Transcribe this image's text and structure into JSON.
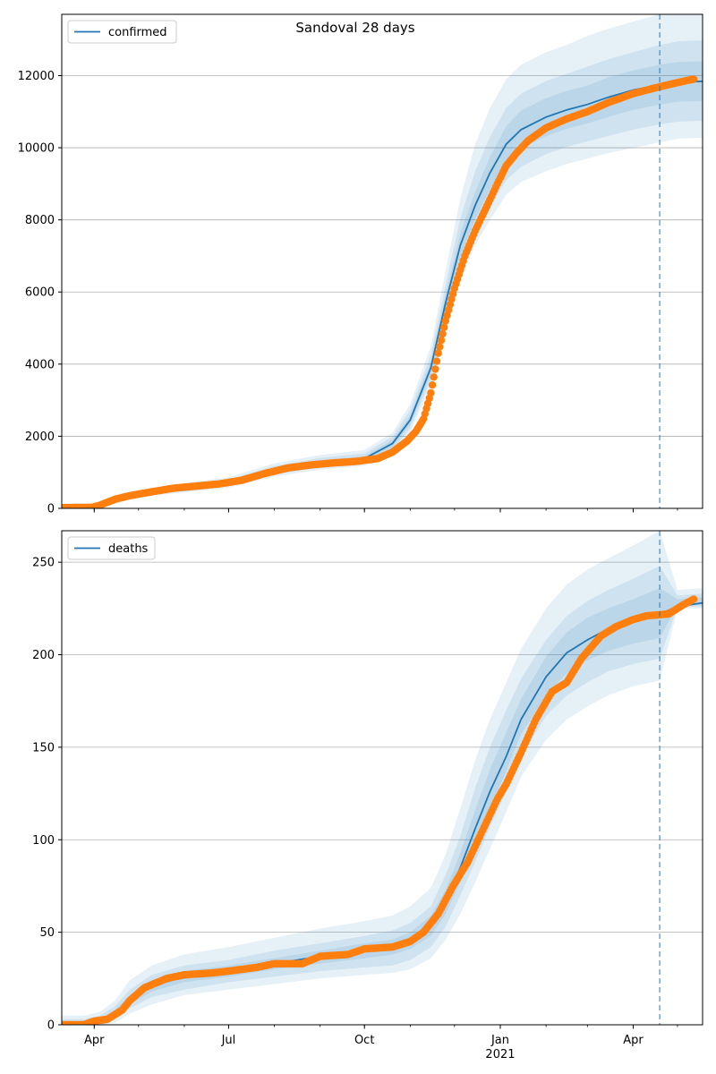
{
  "chart_data": [
    {
      "type": "line",
      "title": "Sandoval 28 days",
      "legend": {
        "label": "confirmed",
        "placement": "top-left"
      },
      "x_axis": {
        "range": [
          "2020-03-10",
          "2021-05-18"
        ],
        "major_ticks": [
          {
            "date": "2020-04-01",
            "label": "Apr"
          },
          {
            "date": "2020-07-01",
            "label": "Jul"
          },
          {
            "date": "2020-10-01",
            "label": "Oct"
          },
          {
            "date": "2021-01-01",
            "label": "Jan",
            "sublabel": "2021"
          },
          {
            "date": "2021-04-01",
            "label": "Apr"
          }
        ],
        "show_labels": false
      },
      "y_axis": {
        "range": [
          0,
          13700
        ],
        "ticks": [
          0,
          2000,
          4000,
          6000,
          8000,
          10000,
          12000
        ],
        "grid": true
      },
      "forecast_start": "2021-04-19",
      "colors": {
        "line": "#1f77b4",
        "observed": "#ff7f0e",
        "band": "#1f77b4",
        "forecast_line": "#1f77b4"
      },
      "model_series": {
        "name": "confirmed",
        "x": [
          "2020-03-10",
          "2020-03-25",
          "2020-04-05",
          "2020-04-20",
          "2020-05-10",
          "2020-06-01",
          "2020-07-01",
          "2020-08-01",
          "2020-09-01",
          "2020-10-01",
          "2020-10-20",
          "2020-11-01",
          "2020-11-15",
          "2020-11-25",
          "2020-12-05",
          "2020-12-15",
          "2020-12-25",
          "2021-01-05",
          "2021-01-15",
          "2021-02-01",
          "2021-02-15",
          "2021-03-01",
          "2021-03-15",
          "2021-04-01",
          "2021-04-19",
          "2021-05-01",
          "2021-05-18"
        ],
        "y": [
          10,
          20,
          120,
          310,
          450,
          560,
          700,
          1050,
          1260,
          1380,
          1800,
          2450,
          3900,
          5700,
          7300,
          8400,
          9300,
          10100,
          10500,
          10850,
          11050,
          11200,
          11400,
          11600,
          11750,
          11820,
          11840
        ],
        "bands": [
          {
            "lower": [
              0,
              0,
              60,
              210,
              350,
              440,
              570,
              880,
              1070,
              1180,
              1530,
              2120,
              3400,
              5000,
              6350,
              7300,
              8000,
              8700,
              9050,
              9350,
              9550,
              9700,
              9850,
              10000,
              10150,
              10250,
              10280
            ],
            "upper": [
              40,
              70,
              190,
              420,
              560,
              700,
              860,
              1250,
              1480,
              1620,
              2100,
              2900,
              4500,
              6600,
              8600,
              10100,
              11100,
              11900,
              12300,
              12650,
              12850,
              13100,
              13300,
              13500,
              13700,
              13800,
              13850
            ]
          },
          {
            "lower": [
              5,
              5,
              80,
              240,
              385,
              480,
              615,
              935,
              1135,
              1245,
              1615,
              2225,
              3575,
              5225,
              6650,
              7650,
              8400,
              9100,
              9475,
              9825,
              10025,
              10175,
              10325,
              10500,
              10650,
              10725,
              10750
            ],
            "upper": [
              30,
              50,
              165,
              385,
              520,
              650,
              800,
              1175,
              1400,
              1525,
              1985,
              2725,
              4250,
              6200,
              8050,
              9350,
              10300,
              11100,
              11500,
              11850,
              12050,
              12250,
              12450,
              12650,
              12850,
              12950,
              12980
            ]
          },
          {
            "lower": [
              8,
              12,
              100,
              280,
              420,
              520,
              660,
              995,
              1195,
              1315,
              1705,
              2335,
              3725,
              5475,
              6975,
              8025,
              8850,
              9600,
              9975,
              10325,
              10525,
              10675,
              10850,
              11050,
              11200,
              11275,
              11300
            ],
            "upper": [
              15,
              30,
              140,
              340,
              480,
              600,
              740,
              1105,
              1325,
              1445,
              1895,
              2565,
              4075,
              5925,
              7625,
              8775,
              9750,
              10600,
              11025,
              11375,
              11575,
              11725,
              11950,
              12150,
              12300,
              12375,
              12400
            ]
          }
        ]
      },
      "observed_series": {
        "name": "confirmed (observed)",
        "x": [
          "2020-03-10",
          "2020-03-20",
          "2020-03-31",
          "2020-04-05",
          "2020-04-15",
          "2020-04-25",
          "2020-05-10",
          "2020-05-25",
          "2020-06-10",
          "2020-06-25",
          "2020-07-10",
          "2020-07-25",
          "2020-08-10",
          "2020-08-25",
          "2020-09-10",
          "2020-09-25",
          "2020-10-10",
          "2020-10-20",
          "2020-10-30",
          "2020-11-05",
          "2020-11-10",
          "2020-11-15",
          "2020-11-20",
          "2020-11-25",
          "2020-12-01",
          "2020-12-08",
          "2020-12-15",
          "2020-12-22",
          "2020-12-30",
          "2021-01-05",
          "2021-01-12",
          "2021-01-20",
          "2021-02-01",
          "2021-02-15",
          "2021-03-01",
          "2021-03-15",
          "2021-04-01",
          "2021-04-15",
          "2021-04-25",
          "2021-05-08",
          "2021-05-12"
        ],
        "y": [
          20,
          25,
          30,
          90,
          250,
          350,
          460,
          560,
          620,
          680,
          780,
          960,
          1120,
          1200,
          1260,
          1300,
          1380,
          1560,
          1870,
          2140,
          2480,
          3200,
          4300,
          5200,
          6100,
          7000,
          7700,
          8300,
          9000,
          9500,
          9850,
          10200,
          10550,
          10800,
          11000,
          11250,
          11500,
          11650,
          11750,
          11870,
          11900
        ]
      }
    },
    {
      "type": "line",
      "legend": {
        "label": "deaths",
        "placement": "top-left"
      },
      "x_axis": {
        "range": [
          "2020-03-10",
          "2021-05-18"
        ],
        "major_ticks": [
          {
            "date": "2020-04-01",
            "label": "Apr"
          },
          {
            "date": "2020-07-01",
            "label": "Jul"
          },
          {
            "date": "2020-10-01",
            "label": "Oct"
          },
          {
            "date": "2021-01-01",
            "label": "Jan",
            "sublabel": "2021"
          },
          {
            "date": "2021-04-01",
            "label": "Apr"
          }
        ],
        "show_labels": true
      },
      "y_axis": {
        "range": [
          0,
          267
        ],
        "ticks": [
          0,
          50,
          100,
          150,
          200,
          250
        ],
        "grid": true
      },
      "forecast_start": "2021-04-19",
      "colors": {
        "line": "#1f77b4",
        "observed": "#ff7f0e",
        "band": "#1f77b4",
        "forecast_line": "#1f77b4"
      },
      "model_series": {
        "name": "deaths",
        "x": [
          "2020-03-10",
          "2020-03-25",
          "2020-04-05",
          "2020-04-15",
          "2020-04-25",
          "2020-05-10",
          "2020-06-01",
          "2020-07-01",
          "2020-08-01",
          "2020-09-01",
          "2020-10-01",
          "2020-10-20",
          "2020-11-01",
          "2020-11-15",
          "2020-11-25",
          "2020-12-05",
          "2020-12-15",
          "2020-12-25",
          "2021-01-05",
          "2021-01-15",
          "2021-02-01",
          "2021-02-15",
          "2021-03-01",
          "2021-03-15",
          "2021-04-01",
          "2021-04-19",
          "2021-05-01",
          "2021-05-18"
        ],
        "y": [
          0,
          0,
          2,
          6,
          14,
          21,
          26,
          29,
          33,
          37,
          40,
          42,
          46,
          54,
          67,
          85,
          106,
          126,
          145,
          165,
          188,
          201,
          208,
          214,
          219,
          222,
          226,
          228
        ],
        "bands": [
          {
            "lower": [
              0,
              0,
              0,
              1,
              6,
              11,
              16,
              19,
              22,
              25,
              27,
              28,
              30,
              36,
              46,
              60,
              77,
              95,
              115,
              134,
              154,
              165,
              172,
              178,
              183,
              186,
              225,
              225
            ],
            "upper": [
              5,
              5,
              7,
              13,
              24,
              32,
              38,
              42,
              47,
              52,
              56,
              59,
              64,
              74,
              92,
              117,
              143,
              165,
              185,
              203,
              225,
              238,
              246,
              252,
              259,
              267,
              235,
              236
            ]
          },
          {
            "lower": [
              0,
              0,
              1,
              3,
              9,
              15,
              19,
              23,
              26,
              29,
              31,
              32,
              35,
              42,
              53,
              70,
              88,
              107,
              126,
              145,
              167,
              178,
              185,
              191,
              195,
              198,
              226,
              226
            ],
            "upper": [
              3,
              3,
              5,
              10,
              19,
              27,
              32,
              35,
              40,
              44,
              48,
              51,
              55,
              64,
              81,
              102,
              128,
              150,
              170,
              187,
              208,
              221,
              229,
              235,
              241,
              248,
              232,
              233
            ]
          },
          {
            "lower": [
              0,
              0,
              1,
              5,
              11,
              18,
              23,
              26,
              30,
              33,
              36,
              38,
              41,
              48,
              60,
              77,
              97,
              117,
              137,
              157,
              178,
              190,
              197,
              202,
              206,
              209,
              227,
              227
            ],
            "upper": [
              1,
              2,
              3,
              8,
              16,
              24,
              29,
              32,
              36,
              40,
              44,
              46,
              50,
              59,
              73,
              93,
              116,
              138,
              158,
              176,
              199,
              212,
              220,
              225,
              230,
              236,
              230,
              231
            ]
          }
        ]
      },
      "observed_series": {
        "name": "deaths (observed)",
        "x": [
          "2020-03-10",
          "2020-03-25",
          "2020-04-01",
          "2020-04-10",
          "2020-04-20",
          "2020-04-25",
          "2020-05-05",
          "2020-05-20",
          "2020-06-01",
          "2020-06-20",
          "2020-07-01",
          "2020-07-20",
          "2020-08-01",
          "2020-08-20",
          "2020-09-01",
          "2020-09-20",
          "2020-10-01",
          "2020-10-20",
          "2020-11-01",
          "2020-11-10",
          "2020-11-20",
          "2020-11-30",
          "2020-12-10",
          "2020-12-20",
          "2020-12-30",
          "2021-01-05",
          "2021-01-15",
          "2021-01-25",
          "2021-02-05",
          "2021-02-15",
          "2021-02-25",
          "2021-03-10",
          "2021-03-20",
          "2021-04-01",
          "2021-04-10",
          "2021-04-25",
          "2021-05-05",
          "2021-05-12"
        ],
        "y": [
          0,
          0,
          2,
          3,
          8,
          13,
          20,
          25,
          27,
          28,
          29,
          31,
          33,
          33,
          37,
          38,
          41,
          42,
          45,
          50,
          60,
          75,
          88,
          105,
          122,
          130,
          147,
          165,
          180,
          185,
          198,
          210,
          215,
          219,
          221,
          222,
          227,
          230
        ]
      }
    }
  ]
}
